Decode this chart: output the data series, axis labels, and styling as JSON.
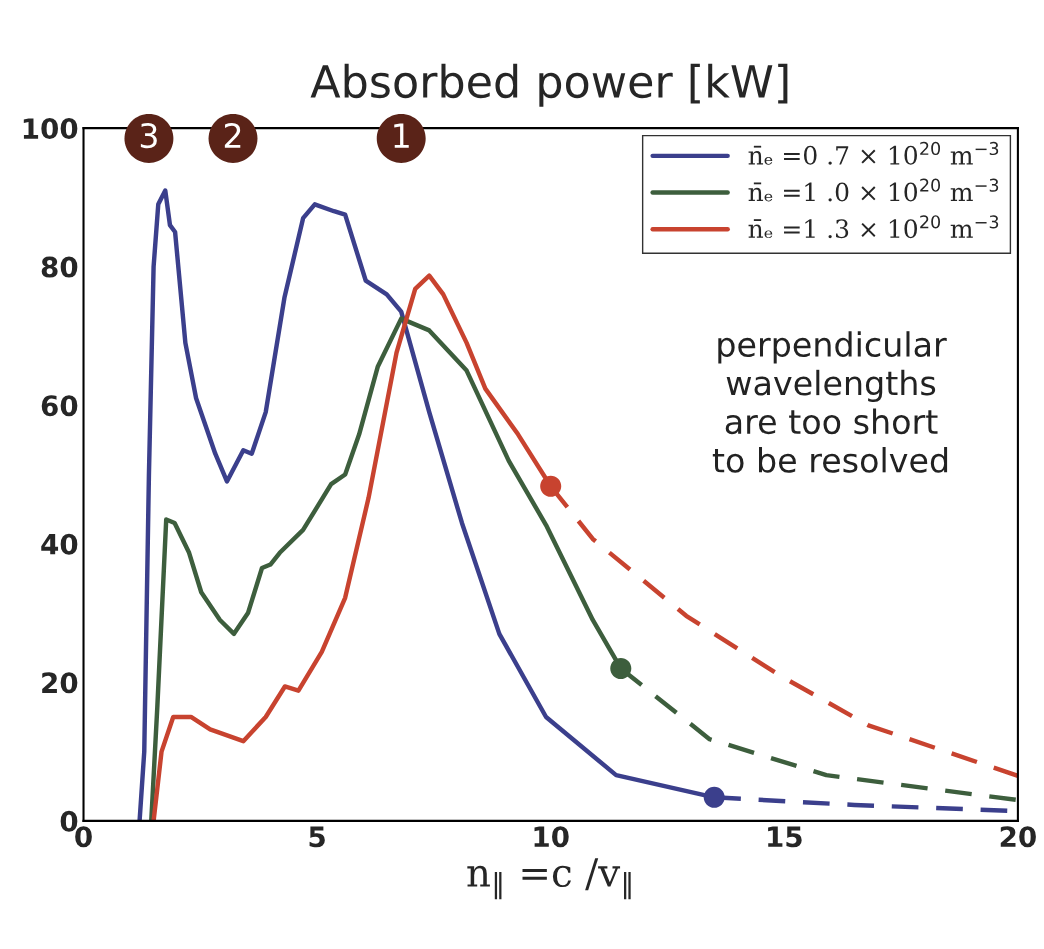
{
  "chart_data": {
    "type": "line",
    "title": "Absorbed power [kW]",
    "xlabel": "n$_{‖}$ =c /v$_{‖}$",
    "xlim": [
      0,
      20
    ],
    "ylim": [
      0,
      100
    ],
    "xticks": [
      0,
      5,
      10,
      15,
      20
    ],
    "yticks": [
      0,
      20,
      40,
      60,
      80,
      100
    ],
    "grid": false,
    "legend": "top right",
    "series": [
      {
        "name": "n̄ₑ =0 .7 × 10$^{20}$ m$^{−3}$",
        "color": "#3b3f8c",
        "line_style": "solid",
        "x": [
          1.2,
          1.3,
          1.4,
          1.5,
          1.6,
          1.75,
          1.85,
          1.96,
          2.18,
          2.41,
          2.82,
          3.07,
          3.42,
          3.6,
          3.9,
          4.3,
          4.7,
          4.95,
          5.36,
          5.6,
          6.04,
          6.49,
          6.8,
          7.4,
          8.1,
          8.9,
          9.9,
          11.4,
          13.5
        ],
        "values": [
          0,
          10,
          50,
          80,
          89,
          91,
          86,
          85,
          69,
          61,
          53,
          49,
          53.5,
          53,
          59,
          75.5,
          87,
          89,
          88,
          87.5,
          78,
          76,
          73.5,
          59,
          43,
          27,
          15,
          6.6,
          3.4
        ]
      },
      {
        "color": "#3b3f8c",
        "line_style": "dashed",
        "x": [
          13.5,
          16.5,
          20
        ],
        "values": [
          3.4,
          2.3,
          1.4
        ]
      },
      {
        "type": "scatter",
        "color": "#3b3f8c",
        "marker": "circle",
        "x": [
          13.5
        ],
        "values": [
          3.4
        ]
      },
      {
        "name": "n̄ₑ =1 .0 × 10$^{20}$ m$^{−3}$",
        "color": "#3d5e3d",
        "line_style": "solid",
        "x": [
          1.45,
          1.58,
          1.77,
          1.95,
          2.26,
          2.52,
          2.92,
          3.22,
          3.52,
          3.82,
          4.0,
          4.2,
          4.7,
          5.3,
          5.6,
          5.9,
          6.3,
          6.8,
          7.4,
          8.2,
          9.1,
          9.9,
          10.9,
          11.5
        ],
        "values": [
          0,
          16.5,
          43.5,
          43,
          38.7,
          33,
          29,
          27,
          30,
          36.5,
          37,
          38.7,
          42,
          48.6,
          50,
          55.8,
          65.6,
          72.5,
          70.8,
          65,
          52,
          42.7,
          29,
          22
        ]
      },
      {
        "color": "#3d5e3d",
        "line_style": "dashed",
        "x": [
          11.5,
          13.4,
          15.9,
          20
        ],
        "values": [
          22,
          11.8,
          6.6,
          3
        ]
      },
      {
        "type": "scatter",
        "color": "#3d5e3d",
        "marker": "circle",
        "x": [
          11.5
        ],
        "values": [
          22
        ]
      },
      {
        "name": "n̄ₑ =1 .3 × 10$^{20}$ m$^{−3}$",
        "color": "#c8432f",
        "line_style": "solid",
        "x": [
          1.5,
          1.67,
          1.92,
          2.3,
          2.71,
          3.42,
          3.9,
          4.31,
          4.6,
          5.1,
          5.6,
          6.1,
          6.7,
          7.1,
          7.4,
          7.7,
          8.2,
          8.6,
          9.3,
          10.0
        ],
        "values": [
          0,
          10,
          15,
          15,
          13.2,
          11.5,
          15,
          19.4,
          18.8,
          24.4,
          32.2,
          46.6,
          67.6,
          76.8,
          78.7,
          76,
          69,
          62.4,
          55.8,
          48.3
        ]
      },
      {
        "color": "#c8432f",
        "line_style": "dashed",
        "x": [
          10.0,
          10.9,
          12.9,
          14.9,
          16.8,
          20
        ],
        "values": [
          48.3,
          40.7,
          29.6,
          21,
          13.8,
          6.5
        ]
      },
      {
        "type": "scatter",
        "color": "#c8432f",
        "marker": "circle",
        "x": [
          10.0
        ],
        "values": [
          48.3
        ]
      }
    ],
    "annotations": [
      "3",
      "2",
      "1",
      "perpendicular\nwavelengths\nare too short\nto be resolved"
    ]
  }
}
